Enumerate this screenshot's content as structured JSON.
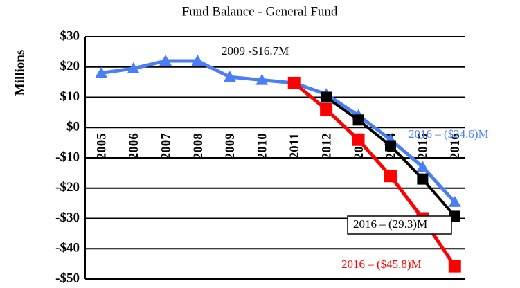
{
  "chart_data": {
    "type": "line",
    "title": "Fund Balance - General Fund",
    "y_label": "Millions",
    "categories": [
      "2005",
      "2006",
      "2007",
      "2008",
      "2009",
      "2010",
      "2011",
      "2012",
      "2013",
      "2014",
      "2015",
      "2016"
    ],
    "series": [
      {
        "color": "#4a7ef5",
        "marker": "triangle",
        "values": [
          18,
          19.5,
          22,
          22,
          16.7,
          15.7,
          14.7,
          11,
          4,
          -4,
          -13,
          -24.6
        ]
      },
      {
        "color": "#000000",
        "marker": "square",
        "values": [
          null,
          null,
          null,
          null,
          null,
          null,
          null,
          10,
          2.5,
          -6,
          -17,
          -29.3
        ]
      },
      {
        "color": "#ff0000",
        "marker": "square",
        "values": [
          null,
          null,
          null,
          null,
          null,
          null,
          14.7,
          6,
          -4,
          -16,
          -30,
          -45.8
        ]
      }
    ],
    "ylim": [
      -50,
      30
    ],
    "yticks": [
      {
        "value": 30,
        "label": "$30"
      },
      {
        "value": 20,
        "label": "$20"
      },
      {
        "value": 10,
        "label": "$10"
      },
      {
        "value": 0,
        "label": "$0"
      },
      {
        "value": -10,
        "label": "-$10"
      },
      {
        "value": -20,
        "label": "-$20"
      },
      {
        "value": -30,
        "label": "-$30"
      },
      {
        "value": -40,
        "label": "-$40"
      },
      {
        "value": -50,
        "label": "-$50"
      }
    ],
    "grid": true,
    "annotations": [
      {
        "text": "2009 -$16.7M",
        "color": "#000000"
      },
      {
        "text": "2016 – ($24.6)M",
        "color": "#4a7ef5"
      },
      {
        "text": "2016 – (29.3)M",
        "color": "#000000",
        "boxed": true
      },
      {
        "text": "2016 – ($45.8)M",
        "color": "#ff0000"
      }
    ]
  }
}
